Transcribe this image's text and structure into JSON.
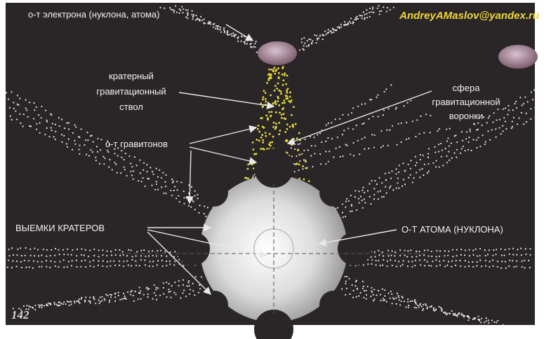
{
  "header": {
    "email": "AndreyAMaslov@yandex.ru"
  },
  "labels": [
    {
      "lines": [
        "о-т электрона (нуклона, атома)"
      ]
    },
    {
      "lines": [
        "кратерный",
        "гравитационный",
        "ствол"
      ]
    },
    {
      "lines": [
        "сфера",
        "гравитационной",
        "воронки"
      ]
    },
    {
      "lines": [
        "о-т гравитонов"
      ]
    },
    {
      "lines": [
        "ВЫЕМКИ КРАТЕРОВ"
      ]
    },
    {
      "lines": [
        "О-Т АТОМА (НУКЛОНА)"
      ]
    }
  ],
  "page_number": "142"
}
